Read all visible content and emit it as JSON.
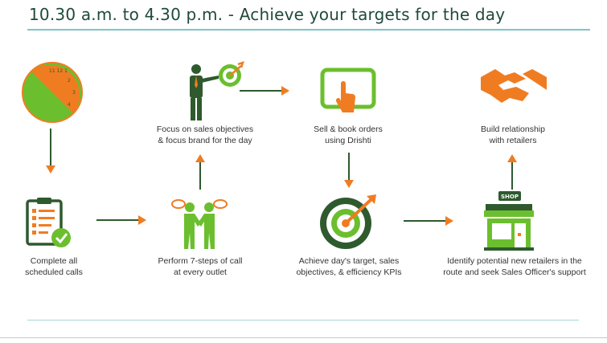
{
  "title": "10.30 a.m. to 4.30 p.m. - Achieve your targets for the day",
  "colors": {
    "green": "#6bbf2e",
    "dark_green": "#2e5a2e",
    "orange": "#f07c22",
    "heading": "#1f4a3a",
    "rule": "#7fc4c8"
  },
  "steps": [
    {
      "icon": "clock-icon",
      "label": ""
    },
    {
      "icon": "checklist-icon",
      "label_lines": [
        "Complete all",
        "scheduled calls"
      ]
    },
    {
      "icon": "handshake-people-icon",
      "label_lines": [
        "Perform 7-steps of call",
        "at every outlet"
      ]
    },
    {
      "icon": "presenter-target-icon",
      "label_lines": [
        "Focus on sales objectives",
        "& focus brand for the day"
      ]
    },
    {
      "icon": "tablet-touch-icon",
      "label_lines": [
        "Sell & book orders",
        "using Drishti"
      ]
    },
    {
      "icon": "target-arrow-icon",
      "label_lines": [
        "Achieve day's target, sales",
        "objectives, & efficiency KPIs"
      ]
    },
    {
      "icon": "shop-icon",
      "label_lines": [
        "Identify potential new retailers in the",
        "route and seek Sales Officer's support"
      ],
      "sign": "SHOP"
    },
    {
      "icon": "handshake-icon",
      "label_lines": [
        "Build relationship",
        "with retailers"
      ]
    }
  ]
}
